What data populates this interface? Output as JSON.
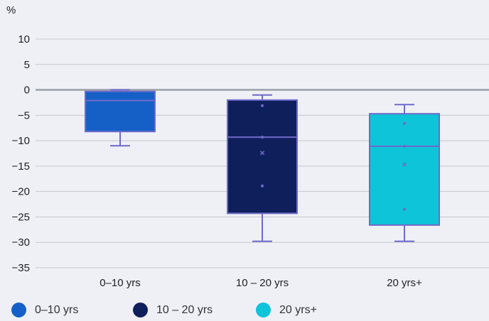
{
  "chart_data": {
    "type": "box",
    "unit_label": "%",
    "yticks": [
      10,
      5,
      0,
      -5,
      -10,
      -15,
      -20,
      -25,
      -30,
      -35
    ],
    "ylim": [
      -35,
      13
    ],
    "categories": [
      "0–10 yrs",
      "10 – 20 yrs",
      "20 yrs+"
    ],
    "boxes": [
      {
        "name": "0–10 yrs",
        "color": "#1560c7",
        "min": -11,
        "q1": -8.2,
        "median": -2.1,
        "q3": -0.3,
        "max": 0,
        "mean": null,
        "points": []
      },
      {
        "name": "10 – 20 yrs",
        "color": "#0f1f5c",
        "min": -29.8,
        "q1": -24.3,
        "median": -9.3,
        "q3": -2,
        "max": -1,
        "mean": -12.4,
        "points": [
          -3.1,
          -9.3,
          -18.9
        ]
      },
      {
        "name": "20 yrs+",
        "color": "#0ec4d8",
        "min": -29.8,
        "q1": -26.6,
        "median": -11.1,
        "q3": -4.7,
        "max": -2.9,
        "mean": -14.7,
        "points": [
          -6.6,
          -11.1,
          -23.5
        ]
      }
    ],
    "legend": {
      "placement": "bottom-left",
      "entries": [
        "0–10 yrs",
        "10 – 20 yrs",
        "20 yrs+"
      ]
    },
    "grid": true,
    "colors": {
      "whisker": "#6f6ac9",
      "zero_line": "#9aa0a8",
      "grid": "#c4c7cc"
    }
  }
}
